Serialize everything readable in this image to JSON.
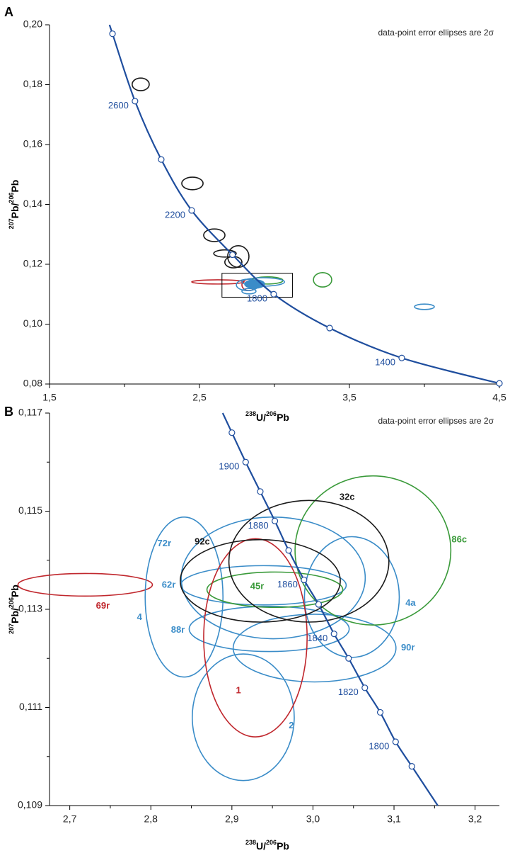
{
  "chart_data": [
    {
      "type": "concordia",
      "panel": "A",
      "note": "data-point error ellipses are 2σ",
      "xlabel": [
        "238",
        "U/",
        "206",
        "Pb"
      ],
      "ylabel": [
        "207",
        "Pb/",
        "206",
        "Pb"
      ],
      "xlim": [
        1.5,
        4.5
      ],
      "ylim": [
        0.08,
        0.2
      ],
      "xticks": [
        {
          "value": 1.5,
          "label": "1,5"
        },
        {
          "value": 2.5,
          "label": "2,5"
        },
        {
          "value": 3.5,
          "label": "3,5"
        },
        {
          "value": 4.5,
          "label": "4,5"
        }
      ],
      "xminor": [
        2,
        3,
        4
      ],
      "yticks": [
        {
          "value": 0.08,
          "label": "0,08"
        },
        {
          "value": 0.1,
          "label": "0,10"
        },
        {
          "value": 0.12,
          "label": "0,12"
        },
        {
          "value": 0.14,
          "label": "0,14"
        },
        {
          "value": 0.16,
          "label": "0,16"
        },
        {
          "value": 0.18,
          "label": "0,18"
        },
        {
          "value": 0.2,
          "label": "0,20"
        }
      ],
      "yminor": [],
      "concordia": {
        "color": "#1f4e9e",
        "x": [
          1.92,
          2.07,
          2.245,
          2.448,
          2.72,
          2.995,
          3.368,
          3.849,
          4.5
        ],
        "y": [
          0.197,
          0.1745,
          0.155,
          0.138,
          0.1232,
          0.11,
          0.0987,
          0.0887,
          0.0802
        ],
        "labels": [
          null,
          "2600",
          null,
          "2200",
          null,
          "1800",
          null,
          "1400",
          null
        ]
      },
      "ellipses": [
        {
          "x": 2.108,
          "y": 0.1801,
          "sx": 0.057,
          "sy": 0.0021,
          "color": "#1a1a1a"
        },
        {
          "x": 2.453,
          "y": 0.147,
          "sx": 0.071,
          "sy": 0.0021,
          "color": "#1a1a1a"
        },
        {
          "x": 2.599,
          "y": 0.1297,
          "sx": 0.071,
          "sy": 0.0021,
          "color": "#1a1a1a"
        },
        {
          "x": 2.67,
          "y": 0.1236,
          "sx": 0.075,
          "sy": 0.0012,
          "color": "#1a1a1a"
        },
        {
          "x": 2.759,
          "y": 0.1226,
          "sx": 0.071,
          "sy": 0.0036,
          "color": "#1a1a1a"
        },
        {
          "x": 2.726,
          "y": 0.1207,
          "sx": 0.057,
          "sy": 0.0019,
          "color": "#1a1a1a"
        },
        {
          "x": 3.321,
          "y": 0.1148,
          "sx": 0.061,
          "sy": 0.0024,
          "color": "#3a9a3a"
        },
        {
          "x": 4.0,
          "y": 0.1058,
          "sx": 0.066,
          "sy": 0.0009,
          "color": "#3a8cc8"
        },
        {
          "x": 2.623,
          "y": 0.1141,
          "sx": 0.175,
          "sy": 0.0007,
          "color": "#c0272d"
        },
        {
          "x": 2.83,
          "y": 0.1131,
          "sx": 0.047,
          "sy": 0.0019,
          "color": "#c0272d"
        },
        {
          "x": 2.821,
          "y": 0.1131,
          "sx": 0.075,
          "sy": 0.0019,
          "color": "#3a8cc8"
        },
        {
          "x": 2.83,
          "y": 0.111,
          "sx": 0.047,
          "sy": 0.0009,
          "color": "#3a8cc8"
        },
        {
          "x": 2.953,
          "y": 0.1146,
          "sx": 0.104,
          "sy": 0.0012,
          "color": "#3a9a3a"
        },
        {
          "x": 2.925,
          "y": 0.1141,
          "sx": 0.142,
          "sy": 0.0014,
          "color": "#3a8cc8"
        },
        {
          "x": 2.868,
          "y": 0.1134,
          "sx": 0.066,
          "sy": 0.0014,
          "color": "#3a8cc8",
          "fill": "#3a8cc8"
        }
      ],
      "inset": {
        "x": [
          2.65,
          3.12
        ],
        "y": [
          0.109,
          0.117
        ]
      }
    },
    {
      "type": "concordia",
      "panel": "B",
      "note": "data-point error ellipses are 2σ",
      "xlabel": [
        "238",
        "U/",
        "206",
        "Pb"
      ],
      "ylabel": [
        "207",
        "Pb/",
        "206",
        "Pb"
      ],
      "xlim": [
        2.675,
        3.23
      ],
      "ylim": [
        0.109,
        0.117
      ],
      "xticks": [
        {
          "value": 2.7,
          "label": "2,7"
        },
        {
          "value": 2.8,
          "label": "2,8"
        },
        {
          "value": 2.9,
          "label": "2,9"
        },
        {
          "value": 3.0,
          "label": "3,0"
        },
        {
          "value": 3.1,
          "label": "3,1"
        },
        {
          "value": 3.2,
          "label": "3,2"
        }
      ],
      "xminor": [
        2.75,
        2.85,
        2.95,
        3.05,
        3.15
      ],
      "yticks": [
        {
          "value": 0.109,
          "label": "0,109"
        },
        {
          "value": 0.111,
          "label": "0,111"
        },
        {
          "value": 0.113,
          "label": "0,113"
        },
        {
          "value": 0.115,
          "label": "0,115"
        },
        {
          "value": 0.117,
          "label": "0,117"
        }
      ],
      "yminor": [
        0.11,
        0.112,
        0.114,
        0.116
      ],
      "concordia": {
        "color": "#1f4e9e",
        "x": [
          2.9,
          2.917,
          2.935,
          2.953,
          2.97,
          2.989,
          3.007,
          3.026,
          3.044,
          3.064,
          3.083,
          3.102,
          3.122
        ],
        "y": [
          0.1166,
          0.116,
          0.1154,
          0.1148,
          0.1142,
          0.1136,
          0.1131,
          0.1125,
          0.112,
          0.1114,
          0.1109,
          0.1103,
          0.1098
        ],
        "labels": [
          null,
          "1900",
          null,
          "1880",
          null,
          "1860",
          null,
          "1840",
          null,
          "1820",
          null,
          "1800",
          null
        ]
      },
      "ellipses": [
        {
          "x": 2.719,
          "y": 0.1135,
          "sx": 0.083,
          "sy": 0.00023,
          "color": "#c0272d",
          "label": "69r"
        },
        {
          "x": 2.841,
          "y": 0.11325,
          "sx": 0.048,
          "sy": 0.00163,
          "color": "#3a8cc8",
          "label": "4"
        },
        {
          "x": 2.951,
          "y": 0.11364,
          "sx": 0.1135,
          "sy": 0.00124,
          "color": "#3a8cc8",
          "label": "72r"
        },
        {
          "x": 2.939,
          "y": 0.11349,
          "sx": 0.102,
          "sy": 0.0004,
          "color": "#3a8cc8",
          "label": "62r"
        },
        {
          "x": 2.946,
          "y": 0.1126,
          "sx": 0.0987,
          "sy": 0.00046,
          "color": "#3a8cc8",
          "label": "88r"
        },
        {
          "x": 2.914,
          "y": 0.1108,
          "sx": 0.0629,
          "sy": 0.00129,
          "color": "#3a8cc8",
          "label": "2"
        },
        {
          "x": 3.048,
          "y": 0.11325,
          "sx": 0.0585,
          "sy": 0.00123,
          "color": "#3a8cc8",
          "label": "4a"
        },
        {
          "x": 3.002,
          "y": 0.11221,
          "sx": 0.1004,
          "sy": 0.00069,
          "color": "#3a8cc8",
          "label": "90r"
        },
        {
          "x": 2.953,
          "y": 0.1134,
          "sx": 0.0838,
          "sy": 0.00036,
          "color": "#3a9a3a",
          "label": "45r"
        },
        {
          "x": 3.074,
          "y": 0.1142,
          "sx": 0.0961,
          "sy": 0.00152,
          "color": "#3a9a3a",
          "label": "86c"
        },
        {
          "x": 2.929,
          "y": 0.11242,
          "sx": 0.0638,
          "sy": 0.00202,
          "color": "#c0272d",
          "label": "1"
        },
        {
          "x": 2.935,
          "y": 0.11358,
          "sx": 0.0987,
          "sy": 0.00084,
          "color": "#1a1a1a",
          "label": "92c"
        },
        {
          "x": 2.995,
          "y": 0.11398,
          "sx": 0.0987,
          "sy": 0.00124,
          "color": "#1a1a1a",
          "label": "32c"
        }
      ]
    }
  ]
}
